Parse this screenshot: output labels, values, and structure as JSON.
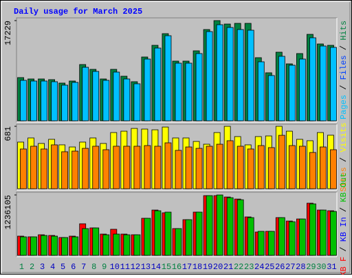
{
  "chart_data": [
    {
      "type": "bar",
      "title": "Daily usage for March 2025",
      "categories": [
        "1",
        "2",
        "3",
        "4",
        "5",
        "6",
        "7",
        "8",
        "9",
        "10",
        "11",
        "12",
        "13",
        "14",
        "15",
        "16",
        "17",
        "18",
        "19",
        "20",
        "21",
        "22",
        "23",
        "24",
        "25",
        "26",
        "27",
        "28",
        "29",
        "30",
        "31"
      ],
      "category_colors": [
        "#008040",
        "#008040",
        "#0000c0",
        "#0000c0",
        "#0000c0",
        "#0000c0",
        "#0000c0",
        "#008040",
        "#008040",
        "#0000c0",
        "#0000c0",
        "#0000c0",
        "#0000c0",
        "#0000c0",
        "#008040",
        "#008040",
        "#0000c0",
        "#0000c0",
        "#0000c0",
        "#0000c0",
        "#0000c0",
        "#008040",
        "#008040",
        "#0000c0",
        "#0000c0",
        "#0000c0",
        "#0000c0",
        "#0000c0",
        "#008040",
        "#008040",
        "#0000c0"
      ],
      "legend_separator": " / ",
      "legend_reverse": true,
      "ylim": [
        0,
        17229
      ],
      "yticks": [
        17229
      ],
      "series": [
        {
          "name": "Hits",
          "color": "#008040",
          "values": [
            7434,
            7198,
            7198,
            7080,
            6490,
            6844,
            9676,
            8850,
            7198,
            8850,
            7670,
            6726,
            10974,
            12980,
            14986,
            10266,
            10266,
            12036,
            15694,
            17229,
            16638,
            16756,
            16756,
            10856,
            8260,
            11800,
            9794,
            11564,
            14868,
            13216,
            12980
          ]
        },
        {
          "name": "Files",
          "color": "#0040ff",
          "values": [
            null,
            null,
            null,
            null,
            null,
            null,
            null,
            null,
            null,
            null,
            null,
            null,
            null,
            null,
            null,
            null,
            null,
            null,
            null,
            null,
            null,
            null,
            null,
            null,
            null,
            null,
            null,
            null,
            null,
            null,
            null
          ]
        },
        {
          "name": "Pages",
          "color": "#00c0ff",
          "values": [
            6962,
            6844,
            6844,
            6726,
            6136,
            6608,
            9204,
            8496,
            6962,
            8378,
            7198,
            6372,
            10620,
            12508,
            14632,
            9912,
            9912,
            11564,
            15340,
            16520,
            16048,
            15694,
            15576,
            10148,
            7788,
            11092,
            9558,
            10620,
            14278,
            12862,
            12626
          ]
        }
      ]
    },
    {
      "type": "bar",
      "legend_reverse": true,
      "ylim": [
        0,
        681
      ],
      "yticks": [
        681
      ],
      "series": [
        {
          "name": "Visits",
          "color": "#ffff00",
          "values": [
            509,
            554,
            494,
            539,
            479,
            456,
            509,
            554,
            494,
            613,
            628,
            658,
            651,
            643,
            673,
            554,
            554,
            516,
            486,
            613,
            681,
            569,
            479,
            569,
            576,
            681,
            628,
            539,
            524,
            613,
            584
          ]
        },
        {
          "name": "Sites",
          "color": "#ff8000",
          "values": [
            434,
            464,
            434,
            479,
            404,
            411,
            441,
            464,
            426,
            464,
            464,
            464,
            471,
            464,
            501,
            419,
            456,
            441,
            464,
            486,
            524,
            464,
            434,
            471,
            449,
            583,
            471,
            464,
            396,
            456,
            426
          ]
        }
      ]
    },
    {
      "type": "bar",
      "legend_reverse": false,
      "ylim": [
        0,
        1236105
      ],
      "yticks": [
        1236105
      ],
      "series": [
        {
          "name": "KB F",
          "color": "#ff0000",
          "values": [
            393316,
            379269,
            421410,
            407363,
            365222,
            393316,
            646162,
            561880,
            435457,
            533786,
            435457,
            421410,
            758538,
            927102,
            870914,
            547833,
            730444,
            884961,
            1222089,
            1222089,
            1193995,
            1151854,
            786632,
            477598,
            491645,
            772585,
            702350,
            744491,
            1067572,
            927102,
            913055
          ]
        },
        {
          "name": "KB In",
          "color": "#0000ff",
          "values": [
            null,
            null,
            null,
            null,
            null,
            null,
            null,
            null,
            null,
            null,
            null,
            null,
            null,
            null,
            null,
            null,
            null,
            null,
            null,
            null,
            null,
            null,
            null,
            null,
            null,
            null,
            null,
            null,
            null,
            null,
            null
          ]
        },
        {
          "name": "KB Out",
          "color": "#00c000",
          "values": [
            379269,
            379269,
            407363,
            393316,
            365222,
            379269,
            547833,
            561880,
            421410,
            435457,
            421410,
            421410,
            758538,
            913055,
            884961,
            547833,
            730444,
            884961,
            1222089,
            1236105,
            1179948,
            1137807,
            772585,
            491645,
            491645,
            772585,
            688303,
            744491,
            1053525,
            927102,
            899008
          ]
        }
      ]
    }
  ]
}
